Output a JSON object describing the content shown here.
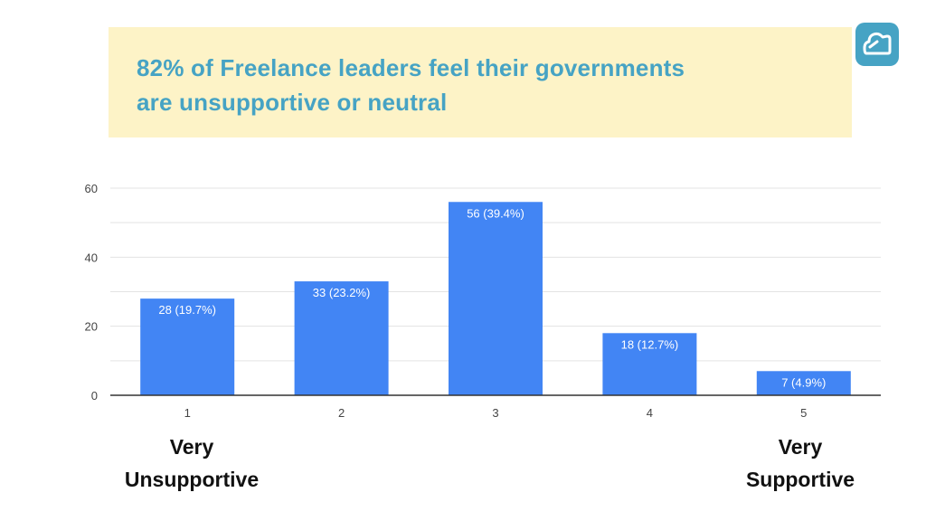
{
  "banner": {
    "line1": "82% of Freelance leaders feel their governments",
    "line2": "are unsupportive or neutral"
  },
  "scale_labels": {
    "left_line1": "Very",
    "left_line2": "Unsupportive",
    "right_line1": "Very",
    "right_line2": "Supportive"
  },
  "colors": {
    "bar": "#4285f4",
    "banner_bg": "#fdf3c7",
    "banner_text": "#46a3c4",
    "logo": "#46a3c4"
  },
  "logo_icon": "cloud-icon",
  "chart_data": {
    "type": "bar",
    "categories": [
      "1",
      "2",
      "3",
      "4",
      "5"
    ],
    "values": [
      28,
      33,
      56,
      18,
      7
    ],
    "data_labels": [
      "28 (19.7%)",
      "33 (23.2%)",
      "56 (39.4%)",
      "18 (12.7%)",
      "7 (4.9%)"
    ],
    "yticks": [
      0,
      20,
      40,
      60
    ],
    "ylim": [
      0,
      60
    ],
    "grid": true,
    "legend": "none"
  }
}
